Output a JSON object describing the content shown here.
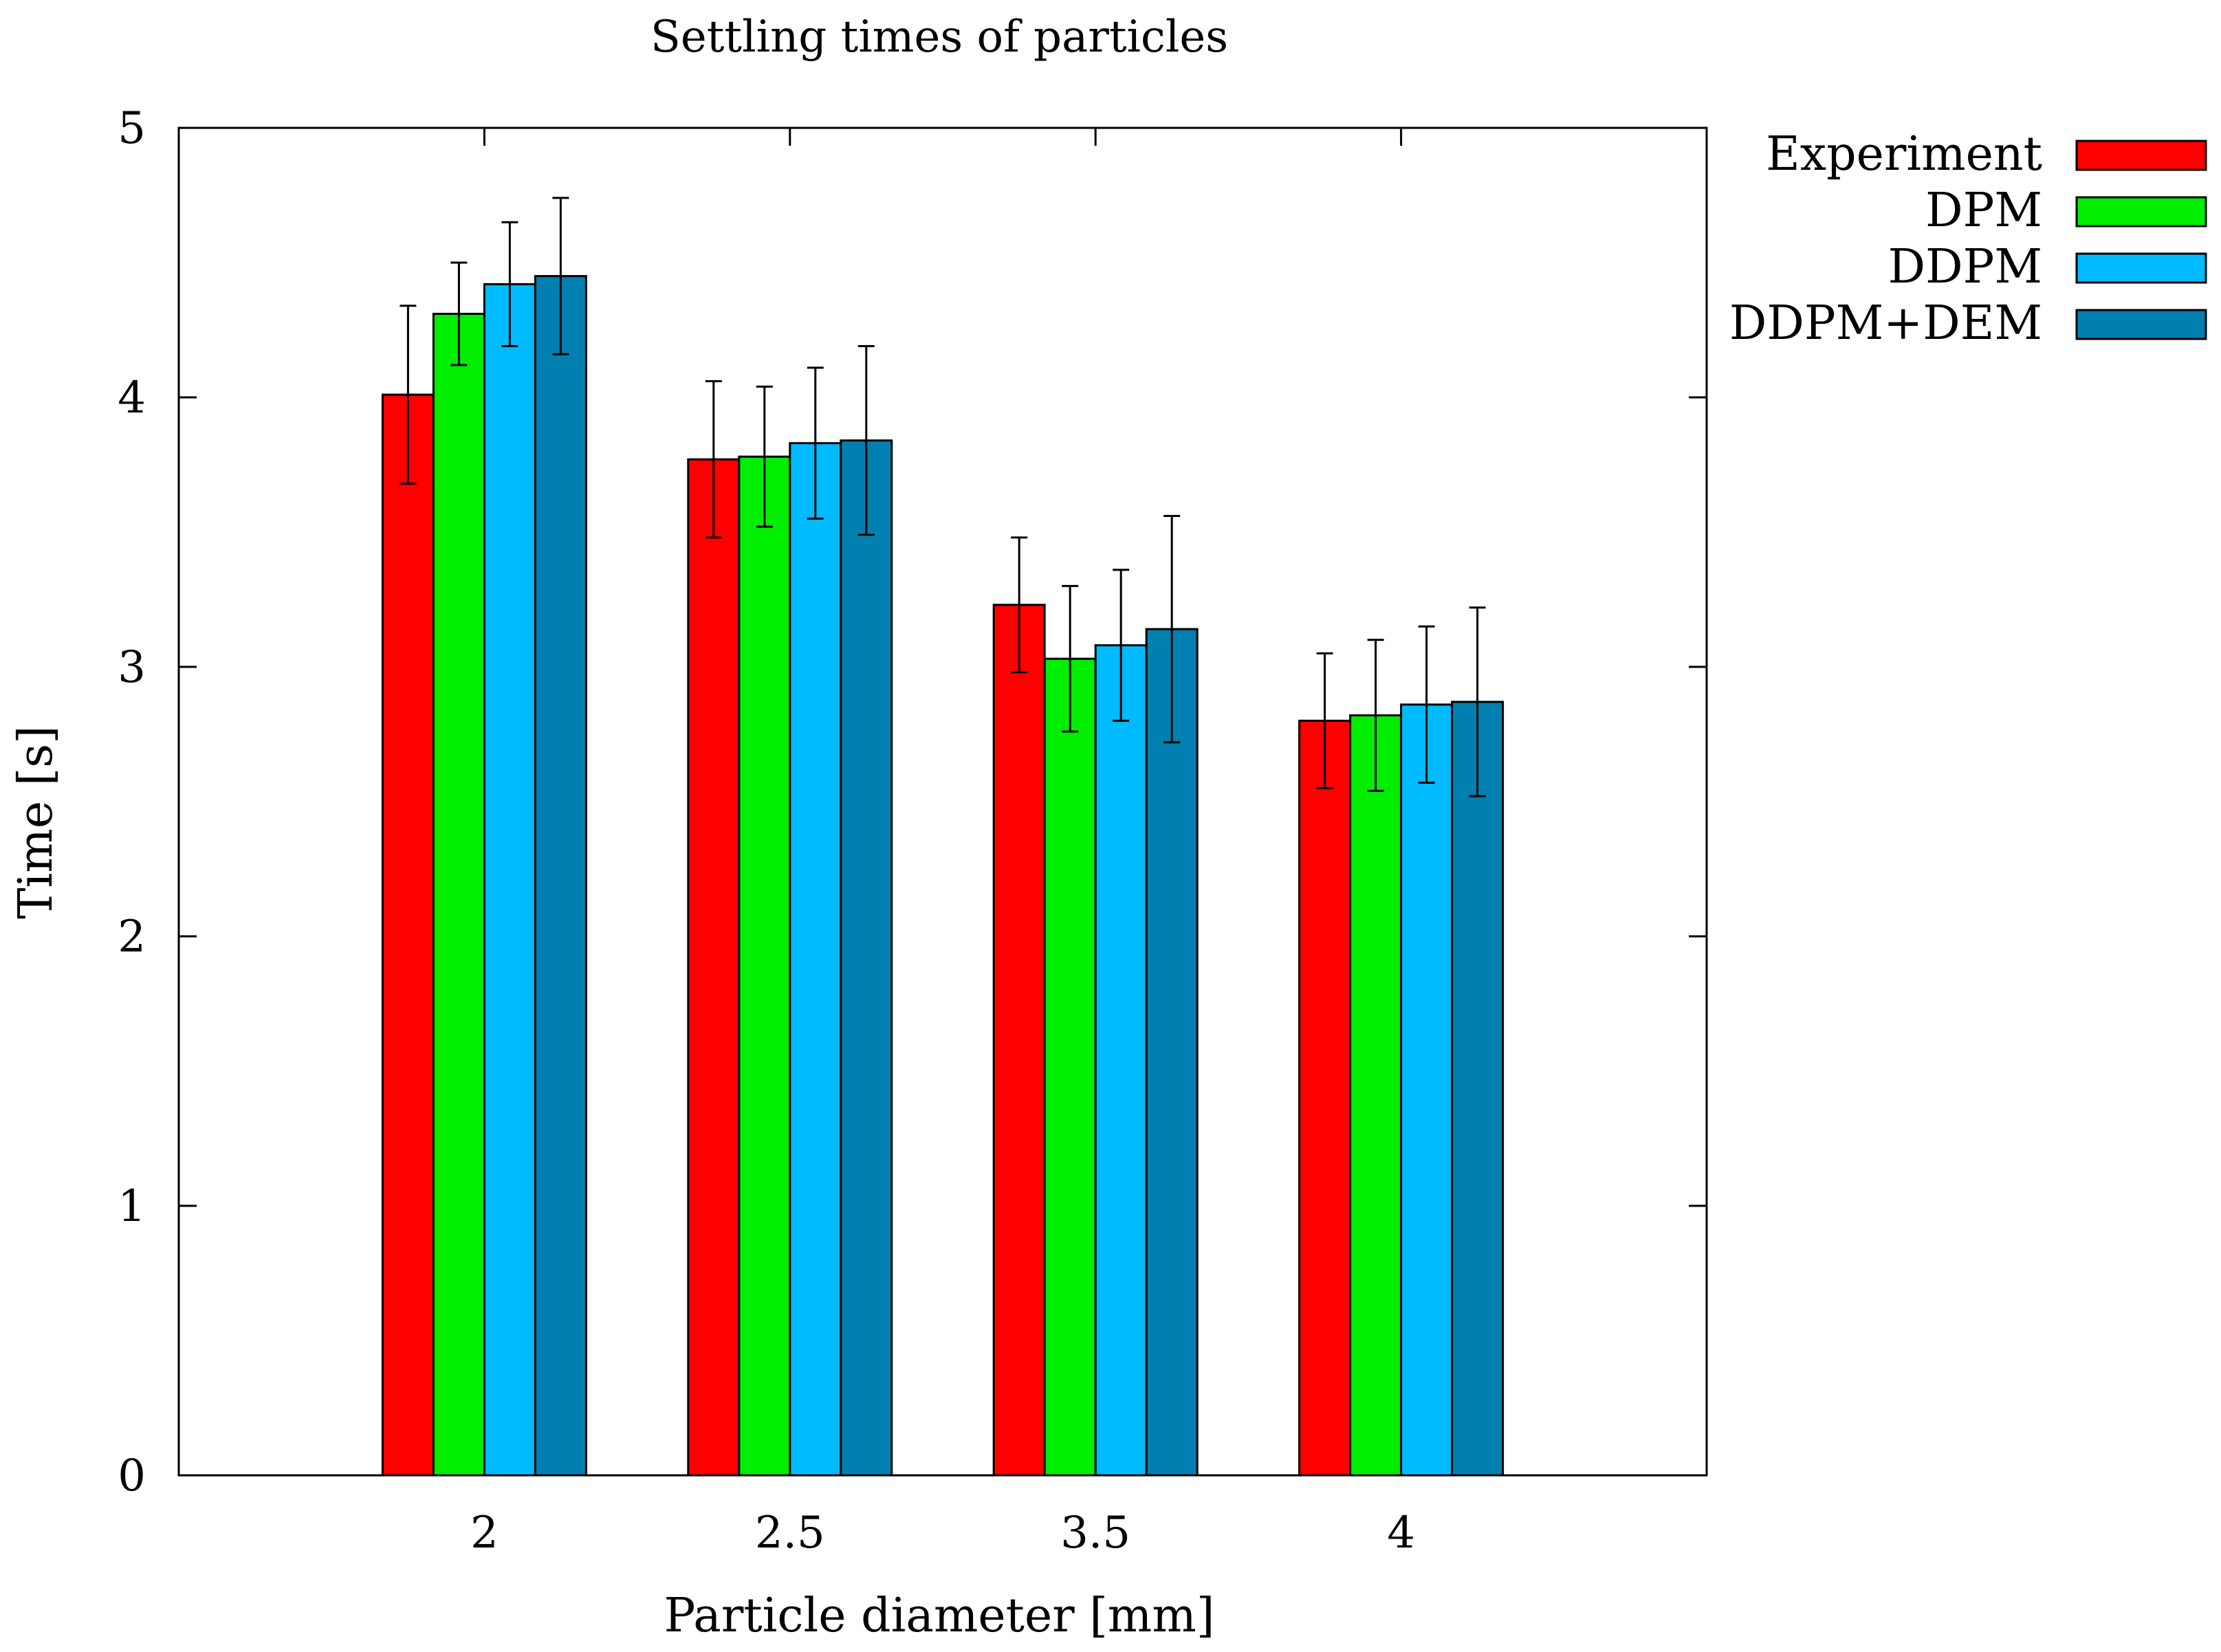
{
  "chart_data": {
    "type": "bar",
    "title": "Settling times of particles",
    "xlabel": "Particle diameter [mm]",
    "ylabel": "Time [s]",
    "ylim": [
      0,
      5
    ],
    "yticks": [
      0,
      1,
      2,
      3,
      4,
      5
    ],
    "categories": [
      "2",
      "2.5",
      "3.5",
      "4"
    ],
    "error_bars": true,
    "legend_position": "outside-top-right",
    "series": [
      {
        "name": "Experiment",
        "color": "#ff0000",
        "values": [
          4.01,
          3.77,
          3.23,
          2.8
        ],
        "errors": [
          0.33,
          0.29,
          0.25,
          0.25
        ]
      },
      {
        "name": "DPM",
        "color": "#00ee00",
        "values": [
          4.31,
          3.78,
          3.03,
          2.82
        ],
        "errors": [
          0.19,
          0.26,
          0.27,
          0.28
        ]
      },
      {
        "name": "DDPM",
        "color": "#00bbff",
        "values": [
          4.42,
          3.83,
          3.08,
          2.86
        ],
        "errors": [
          0.23,
          0.28,
          0.28,
          0.29
        ]
      },
      {
        "name": "DDPM+DEM",
        "color": "#0080b0",
        "values": [
          4.45,
          3.84,
          3.14,
          2.87
        ],
        "errors": [
          0.29,
          0.35,
          0.42,
          0.35
        ]
      }
    ]
  }
}
